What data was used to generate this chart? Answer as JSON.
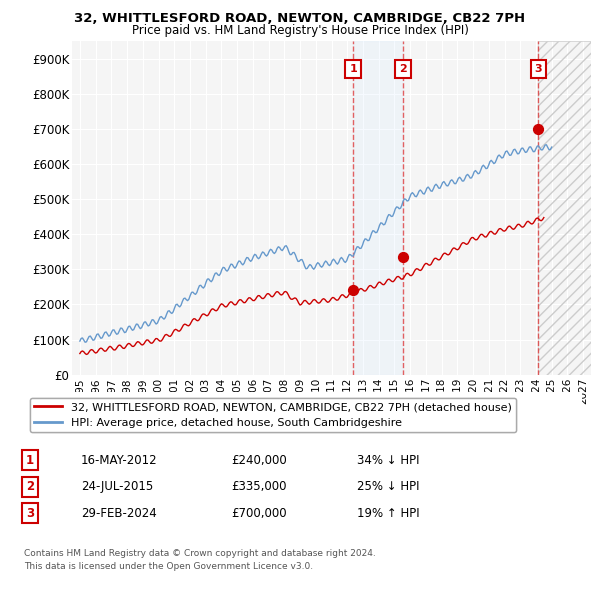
{
  "title1": "32, WHITTLESFORD ROAD, NEWTON, CAMBRIDGE, CB22 7PH",
  "title2": "Price paid vs. HM Land Registry's House Price Index (HPI)",
  "ylabel_ticks": [
    "£0",
    "£100K",
    "£200K",
    "£300K",
    "£400K",
    "£500K",
    "£600K",
    "£700K",
    "£800K",
    "£900K"
  ],
  "ytick_values": [
    0,
    100000,
    200000,
    300000,
    400000,
    500000,
    600000,
    700000,
    800000,
    900000
  ],
  "ylim": [
    0,
    950000
  ],
  "legend_line1": "32, WHITTLESFORD ROAD, NEWTON, CAMBRIDGE, CB22 7PH (detached house)",
  "legend_line2": "HPI: Average price, detached house, South Cambridgeshire",
  "line_red_color": "#cc0000",
  "line_blue_color": "#6699cc",
  "transactions": [
    {
      "num": 1,
      "date": "16-MAY-2012",
      "price": 240000,
      "pct": "34%",
      "dir": "↓",
      "x_year": 2012.38
    },
    {
      "num": 2,
      "date": "24-JUL-2015",
      "price": 335000,
      "pct": "25%",
      "dir": "↓",
      "x_year": 2015.56
    },
    {
      "num": 3,
      "date": "29-FEB-2024",
      "price": 700000,
      "pct": "19%",
      "dir": "↑",
      "x_year": 2024.16
    }
  ],
  "footnote1": "Contains HM Land Registry data © Crown copyright and database right 2024.",
  "footnote2": "This data is licensed under the Open Government Licence v3.0.",
  "background_color": "#ffffff",
  "plot_bg_color": "#f5f5f5",
  "grid_color": "#ffffff",
  "shading_color": "#ddeeff",
  "hatch_color": "#cccccc",
  "xlim": [
    1994.5,
    2027.5
  ]
}
